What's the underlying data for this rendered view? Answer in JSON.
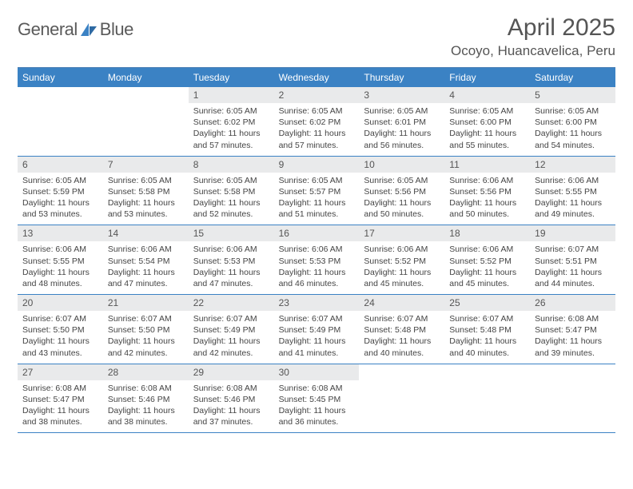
{
  "logo": {
    "text_left": "General",
    "text_right": "Blue"
  },
  "header": {
    "title": "April 2025",
    "location": "Ocoyo, Huancavelica, Peru"
  },
  "colors": {
    "header_bg": "#3b82c4",
    "daynum_bg": "#e9eaeb",
    "border": "#3b82c4",
    "title_text": "#555555"
  },
  "day_names": [
    "Sunday",
    "Monday",
    "Tuesday",
    "Wednesday",
    "Thursday",
    "Friday",
    "Saturday"
  ],
  "calendar": {
    "first_day_index": 2,
    "days": [
      {
        "n": 1,
        "sr": "6:05 AM",
        "ss": "6:02 PM",
        "dl": "11 hours and 57 minutes."
      },
      {
        "n": 2,
        "sr": "6:05 AM",
        "ss": "6:02 PM",
        "dl": "11 hours and 57 minutes."
      },
      {
        "n": 3,
        "sr": "6:05 AM",
        "ss": "6:01 PM",
        "dl": "11 hours and 56 minutes."
      },
      {
        "n": 4,
        "sr": "6:05 AM",
        "ss": "6:00 PM",
        "dl": "11 hours and 55 minutes."
      },
      {
        "n": 5,
        "sr": "6:05 AM",
        "ss": "6:00 PM",
        "dl": "11 hours and 54 minutes."
      },
      {
        "n": 6,
        "sr": "6:05 AM",
        "ss": "5:59 PM",
        "dl": "11 hours and 53 minutes."
      },
      {
        "n": 7,
        "sr": "6:05 AM",
        "ss": "5:58 PM",
        "dl": "11 hours and 53 minutes."
      },
      {
        "n": 8,
        "sr": "6:05 AM",
        "ss": "5:58 PM",
        "dl": "11 hours and 52 minutes."
      },
      {
        "n": 9,
        "sr": "6:05 AM",
        "ss": "5:57 PM",
        "dl": "11 hours and 51 minutes."
      },
      {
        "n": 10,
        "sr": "6:05 AM",
        "ss": "5:56 PM",
        "dl": "11 hours and 50 minutes."
      },
      {
        "n": 11,
        "sr": "6:06 AM",
        "ss": "5:56 PM",
        "dl": "11 hours and 50 minutes."
      },
      {
        "n": 12,
        "sr": "6:06 AM",
        "ss": "5:55 PM",
        "dl": "11 hours and 49 minutes."
      },
      {
        "n": 13,
        "sr": "6:06 AM",
        "ss": "5:55 PM",
        "dl": "11 hours and 48 minutes."
      },
      {
        "n": 14,
        "sr": "6:06 AM",
        "ss": "5:54 PM",
        "dl": "11 hours and 47 minutes."
      },
      {
        "n": 15,
        "sr": "6:06 AM",
        "ss": "5:53 PM",
        "dl": "11 hours and 47 minutes."
      },
      {
        "n": 16,
        "sr": "6:06 AM",
        "ss": "5:53 PM",
        "dl": "11 hours and 46 minutes."
      },
      {
        "n": 17,
        "sr": "6:06 AM",
        "ss": "5:52 PM",
        "dl": "11 hours and 45 minutes."
      },
      {
        "n": 18,
        "sr": "6:06 AM",
        "ss": "5:52 PM",
        "dl": "11 hours and 45 minutes."
      },
      {
        "n": 19,
        "sr": "6:07 AM",
        "ss": "5:51 PM",
        "dl": "11 hours and 44 minutes."
      },
      {
        "n": 20,
        "sr": "6:07 AM",
        "ss": "5:50 PM",
        "dl": "11 hours and 43 minutes."
      },
      {
        "n": 21,
        "sr": "6:07 AM",
        "ss": "5:50 PM",
        "dl": "11 hours and 42 minutes."
      },
      {
        "n": 22,
        "sr": "6:07 AM",
        "ss": "5:49 PM",
        "dl": "11 hours and 42 minutes."
      },
      {
        "n": 23,
        "sr": "6:07 AM",
        "ss": "5:49 PM",
        "dl": "11 hours and 41 minutes."
      },
      {
        "n": 24,
        "sr": "6:07 AM",
        "ss": "5:48 PM",
        "dl": "11 hours and 40 minutes."
      },
      {
        "n": 25,
        "sr": "6:07 AM",
        "ss": "5:48 PM",
        "dl": "11 hours and 40 minutes."
      },
      {
        "n": 26,
        "sr": "6:08 AM",
        "ss": "5:47 PM",
        "dl": "11 hours and 39 minutes."
      },
      {
        "n": 27,
        "sr": "6:08 AM",
        "ss": "5:47 PM",
        "dl": "11 hours and 38 minutes."
      },
      {
        "n": 28,
        "sr": "6:08 AM",
        "ss": "5:46 PM",
        "dl": "11 hours and 38 minutes."
      },
      {
        "n": 29,
        "sr": "6:08 AM",
        "ss": "5:46 PM",
        "dl": "11 hours and 37 minutes."
      },
      {
        "n": 30,
        "sr": "6:08 AM",
        "ss": "5:45 PM",
        "dl": "11 hours and 36 minutes."
      }
    ]
  },
  "labels": {
    "sunrise_prefix": "Sunrise: ",
    "sunset_prefix": "Sunset: ",
    "daylight_prefix": "Daylight: "
  }
}
